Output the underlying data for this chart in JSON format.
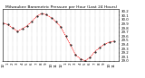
{
  "title": "Milwaukee Barometric Pressure per Hour (Last 24 Hours)",
  "xlim": [
    0,
    24
  ],
  "ylim": [
    29.0,
    30.25
  ],
  "yticks": [
    29.0,
    29.1,
    29.2,
    29.3,
    29.4,
    29.5,
    29.6,
    29.7,
    29.8,
    29.9,
    30.0,
    30.1,
    30.2
  ],
  "ytick_labels": [
    "29.0",
    "29.1",
    "29.2",
    "29.3",
    "29.4",
    "29.5",
    "29.6",
    "29.7",
    "29.8",
    "29.9",
    "30.0",
    "30.1",
    "30.2"
  ],
  "xtick_positions": [
    0,
    1,
    2,
    3,
    4,
    5,
    6,
    7,
    8,
    9,
    10,
    11,
    12,
    13,
    14,
    15,
    16,
    17,
    18,
    19,
    20,
    21,
    22,
    23
  ],
  "xtick_labels": [
    "12",
    "1",
    "2",
    "3",
    "4",
    "5",
    "6",
    "7",
    "8",
    "9",
    "10",
    "11",
    "12",
    "1",
    "2",
    "3",
    "4",
    "5",
    "6",
    "7",
    "8",
    "9",
    "10",
    "11"
  ],
  "hours": [
    0,
    1,
    2,
    3,
    4,
    5,
    6,
    7,
    8,
    9,
    10,
    11,
    12,
    13,
    14,
    15,
    16,
    17,
    18,
    19,
    20,
    21,
    22,
    23
  ],
  "pressure": [
    29.92,
    29.88,
    29.8,
    29.72,
    29.78,
    29.85,
    29.96,
    30.08,
    30.15,
    30.12,
    30.05,
    29.95,
    29.82,
    29.6,
    29.38,
    29.15,
    29.05,
    29.0,
    29.08,
    29.22,
    29.32,
    29.4,
    29.45,
    29.48
  ],
  "line_color": "#ff0000",
  "marker_color": "#000000",
  "bg_color": "#ffffff",
  "grid_color": "#888888",
  "title_fontsize": 3.2,
  "tick_fontsize": 2.8,
  "linewidth": 0.5,
  "markersize": 1.0
}
